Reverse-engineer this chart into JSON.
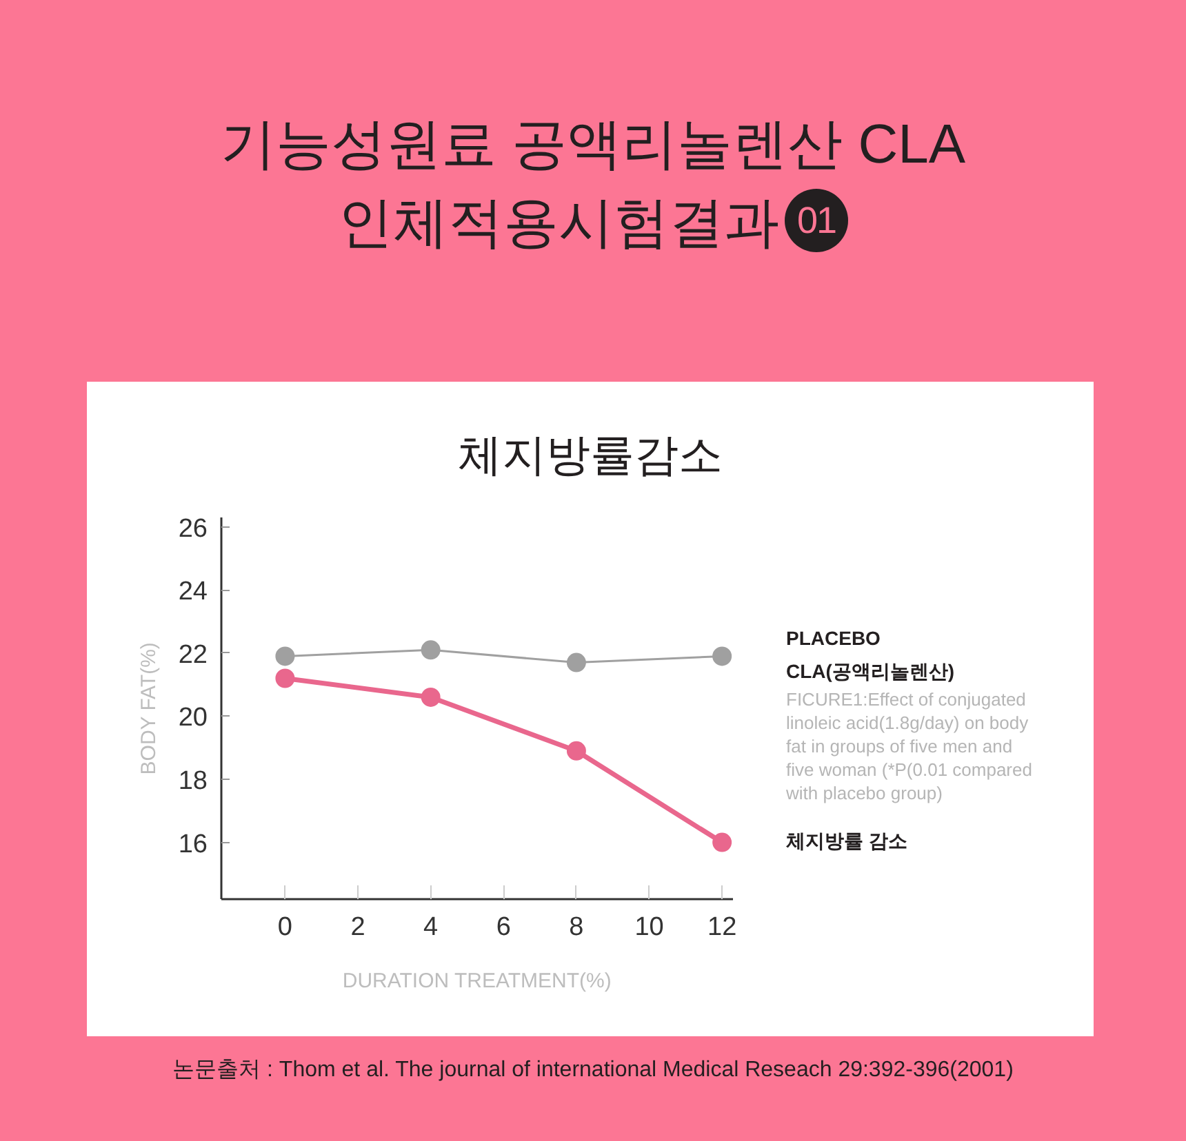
{
  "chart_data": {
    "type": "line",
    "title": "기능성원료 공액리놀렌산 CLA 인체적용시험결과",
    "subtitle": "체지방률감소",
    "xlabel": "DURATION TREATMENT(%)",
    "ylabel": "BODY FAT(%)",
    "x": [
      0,
      4,
      8,
      12
    ],
    "series": [
      {
        "name": "PLACEBO",
        "color": "#a0a0a0",
        "values": [
          21.9,
          22.1,
          21.7,
          21.9
        ]
      },
      {
        "name": "CLA(공액리놀렌산)",
        "color": "#e9678d",
        "values": [
          21.2,
          20.6,
          18.9,
          16.0
        ]
      }
    ],
    "xlim": [
      -1.75,
      12.3
    ],
    "ylim": [
      14.2,
      26.3
    ],
    "xticks": [
      0,
      2,
      4,
      6,
      8,
      10,
      12
    ],
    "yticks": [
      16,
      18,
      20,
      22,
      24,
      26
    ],
    "marker": "circle",
    "line_style": "solid",
    "annotations": [
      "01",
      "FICURE1:Effect of conjugated linoleic acid(1.8g/day) on body fat in groups of five men and five woman (*P(0.01 compared with placebo group)",
      "체지방률 감소",
      "논문출처 : Thom et al. The journal of international Medical Reseach 29:392-396(2001)"
    ]
  }
}
